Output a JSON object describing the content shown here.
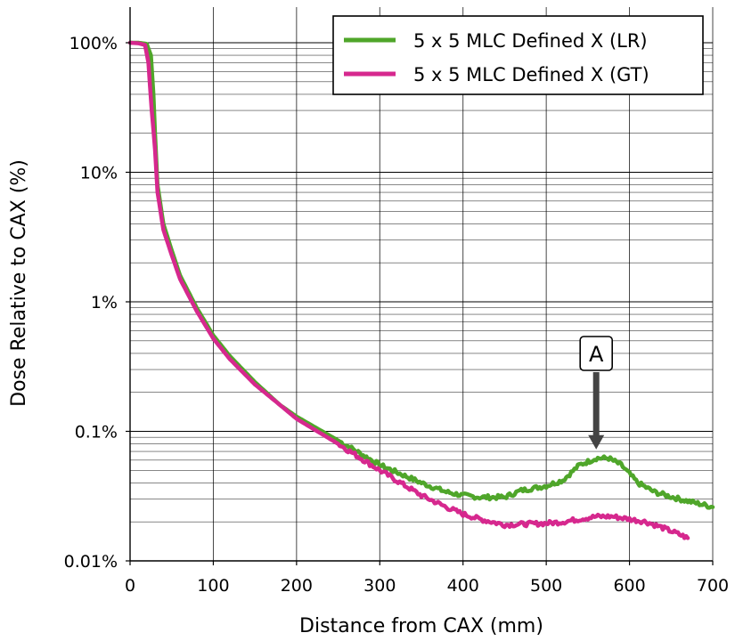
{
  "chart_data": {
    "type": "line",
    "title": "",
    "xlabel": "Distance from CAX (mm)",
    "ylabel": "Dose Relative to CAX (%)",
    "xlim": [
      0,
      700
    ],
    "ylim": [
      0.01,
      150
    ],
    "y_scale": "log",
    "grid": true,
    "legend_position": "top-right",
    "x_ticks": [
      0,
      100,
      200,
      300,
      400,
      500,
      600,
      700
    ],
    "x_tick_labels": [
      "0",
      "100",
      "200",
      "300",
      "400",
      "500",
      "600",
      "700"
    ],
    "y_ticks": [
      0.01,
      0.1,
      1,
      10,
      100
    ],
    "y_tick_labels": [
      "0.01%",
      "0.1%",
      "1%",
      "10%",
      "100%"
    ],
    "series": [
      {
        "name": "5 x 5 MLC Defined X (LR)",
        "color": "#4fa62a",
        "x": [
          0,
          10,
          20,
          25,
          28,
          30,
          33,
          40,
          50,
          60,
          80,
          100,
          120,
          150,
          180,
          200,
          250,
          300,
          350,
          380,
          400,
          420,
          450,
          470,
          500,
          520,
          540,
          560,
          575,
          590,
          610,
          630,
          660,
          690,
          700
        ],
        "y": [
          100,
          100,
          98,
          80,
          40,
          20,
          8,
          4,
          2.5,
          1.6,
          0.9,
          0.55,
          0.38,
          0.24,
          0.16,
          0.13,
          0.085,
          0.055,
          0.04,
          0.034,
          0.032,
          0.031,
          0.031,
          0.035,
          0.038,
          0.042,
          0.055,
          0.062,
          0.062,
          0.055,
          0.04,
          0.034,
          0.03,
          0.027,
          0.026
        ]
      },
      {
        "name": "5 x 5 MLC Defined X (GT)",
        "color": "#d6288e",
        "x": [
          0,
          10,
          18,
          22,
          26,
          30,
          33,
          40,
          50,
          60,
          80,
          100,
          120,
          150,
          180,
          200,
          250,
          300,
          350,
          380,
          400,
          420,
          450,
          500,
          520,
          540,
          560,
          580,
          600,
          620,
          640,
          660,
          670
        ],
        "y": [
          100,
          99,
          96,
          70,
          30,
          15,
          7,
          3.6,
          2.3,
          1.5,
          0.85,
          0.52,
          0.36,
          0.23,
          0.16,
          0.125,
          0.08,
          0.05,
          0.032,
          0.026,
          0.023,
          0.021,
          0.019,
          0.0195,
          0.02,
          0.021,
          0.022,
          0.022,
          0.021,
          0.02,
          0.018,
          0.016,
          0.015
        ]
      }
    ],
    "annotations": [
      {
        "text": "A",
        "x": 560,
        "y": 0.066,
        "arrow": "down"
      }
    ]
  }
}
